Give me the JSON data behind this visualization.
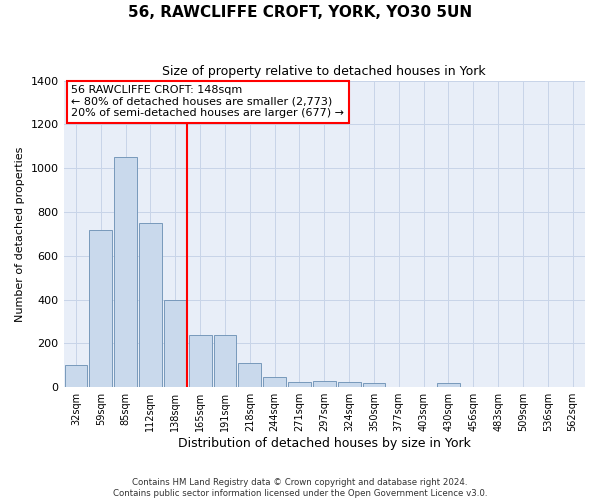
{
  "title": "56, RAWCLIFFE CROFT, YORK, YO30 5UN",
  "subtitle": "Size of property relative to detached houses in York",
  "xlabel": "Distribution of detached houses by size in York",
  "ylabel": "Number of detached properties",
  "categories": [
    "32sqm",
    "59sqm",
    "85sqm",
    "112sqm",
    "138sqm",
    "165sqm",
    "191sqm",
    "218sqm",
    "244sqm",
    "271sqm",
    "297sqm",
    "324sqm",
    "350sqm",
    "377sqm",
    "403sqm",
    "430sqm",
    "456sqm",
    "483sqm",
    "509sqm",
    "536sqm",
    "562sqm"
  ],
  "values": [
    100,
    720,
    1050,
    750,
    400,
    240,
    240,
    110,
    48,
    25,
    30,
    25,
    18,
    0,
    0,
    18,
    0,
    0,
    0,
    0,
    0
  ],
  "bar_color": "#c9d9ec",
  "bar_edge_color": "#7799bb",
  "vline_color": "red",
  "annotation_text": "56 RAWCLIFFE CROFT: 148sqm\n← 80% of detached houses are smaller (2,773)\n20% of semi-detached houses are larger (677) →",
  "annotation_box_color": "white",
  "annotation_box_edge_color": "red",
  "ylim": [
    0,
    1400
  ],
  "yticks": [
    0,
    200,
    400,
    600,
    800,
    1000,
    1200,
    1400
  ],
  "grid_color": "#c8d4e8",
  "background_color": "#e8eef8",
  "title_fontsize": 11,
  "subtitle_fontsize": 9,
  "footer": "Contains HM Land Registry data © Crown copyright and database right 2024.\nContains public sector information licensed under the Open Government Licence v3.0."
}
